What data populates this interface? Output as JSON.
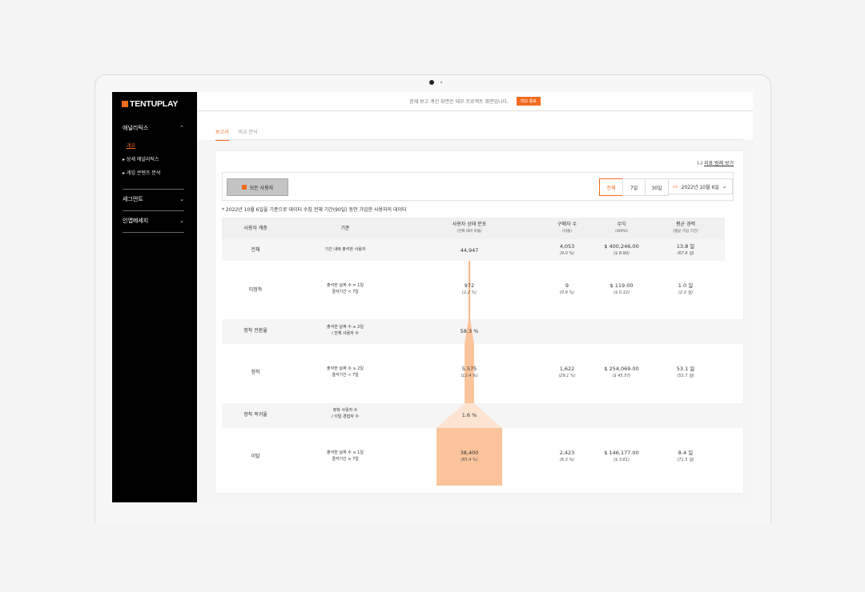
{
  "brand": {
    "name": "TENTUPLAY",
    "accent": "#f26b1d"
  },
  "sidebar": {
    "section1": {
      "label": "애널리틱스"
    },
    "items": [
      {
        "label": "개요"
      },
      {
        "label": "▸ 상세 애널리틱스"
      },
      {
        "label": "▸ 게임 콘텐츠 분석"
      }
    ],
    "section2": {
      "label": "세그먼트"
    },
    "section3": {
      "label": "인앱메세지"
    }
  },
  "topbar": {
    "text": "현재 보고 계신 화면은 데모 프로젝트 화면입니다.",
    "button": "데모 종료"
  },
  "tabs": [
    {
      "label": "보고서"
    },
    {
      "label": "비교 분석"
    }
  ],
  "card": {
    "legend_link_prefix": "(-)",
    "legend_link": "지표 범례 보기",
    "segment_button": "모든 사용자",
    "ranges": [
      "전체",
      "7일",
      "30일"
    ],
    "date": "2022년 10월 6일",
    "note": "* 2022년 10월 6일을 기준으로 데이터 수집 전체 기간(90일) 동안 가입한 사용자의 데이터"
  },
  "table": {
    "headers": {
      "tier": "사용자 계층",
      "criteria": "기준",
      "dist": "사용자 상태 분포",
      "dist_sub": "(전체 대비 비율)",
      "buyers": "구매자 수",
      "buyers_sub": "(비율)",
      "revenue": "수익",
      "revenue_sub": "(ARPU)",
      "life": "평균 경력",
      "life_sub": "(평균 가입 기간)"
    },
    "rows": [
      {
        "tier": "전체",
        "crit1": "기간 내에 출석한 사용자",
        "crit2": "",
        "dist": "44,947",
        "dist_pct": "",
        "buyers": "4,053",
        "buyers_pct": "(9.0 %)",
        "revenue": "$ 400,246.00",
        "arpu": "($ 8.90)",
        "life": "13.8 일",
        "life_sub": "(67.8 일)"
      },
      {
        "tier": "미정착",
        "crit1": "출석한 날짜 수 = 1일",
        "crit2": "결석기간 < 7일",
        "dist": "972",
        "dist_pct": "(2.2 %)",
        "buyers": "9",
        "buyers_pct": "(0.9 %)",
        "revenue": "$ 119.00",
        "arpu": "($ 0.12)",
        "life": "1.0 일",
        "life_sub": "(2.0 일)"
      },
      {
        "tier": "정착 전환율",
        "crit1": "출석한 날짜 수 ≥ 2일",
        "crit2": "/ 전체 사용자 수",
        "dist": "58.3 %",
        "dist_pct": "",
        "buyers": "",
        "buyers_pct": "",
        "revenue": "",
        "arpu": "",
        "life": "",
        "life_sub": ""
      },
      {
        "tier": "정착",
        "crit1": "출석한 날짜 수 ≥ 2일",
        "crit2": "결석기간 < 7일",
        "dist": "5,575",
        "dist_pct": "(12.4 %)",
        "buyers": "1,622",
        "buyers_pct": "(29.1 %)",
        "revenue": "$ 254,069.00",
        "arpu": "($ 45.57)",
        "life": "53.1 일",
        "life_sub": "(53.7 일)"
      },
      {
        "tier": "정착 복귀율",
        "crit1": "정착 사용자 수",
        "crit2": "/ 이탈 경험자 수",
        "dist": "1.6 %",
        "dist_pct": "",
        "buyers": "",
        "buyers_pct": "",
        "revenue": "",
        "arpu": "",
        "life": "",
        "life_sub": ""
      },
      {
        "tier": "이탈",
        "crit1": "출석한 날짜 수 ≥ 1일",
        "crit2": "결석기간 ≥ 7일",
        "dist": "38,400",
        "dist_pct": "(85.4 %)",
        "buyers": "2,423",
        "buyers_pct": "(6.3 %)",
        "revenue": "$ 146,177.00",
        "arpu": "($ 3.81)",
        "life": "8.4 일",
        "life_sub": "(71.5 일)"
      }
    ]
  },
  "funnel": {
    "share_unsettled": 0.022,
    "share_settled": 0.124,
    "share_churn": 0.854,
    "colors": {
      "line": "#f9b98c",
      "bar": "#fbc49b",
      "light": "#fde3d2"
    }
  }
}
